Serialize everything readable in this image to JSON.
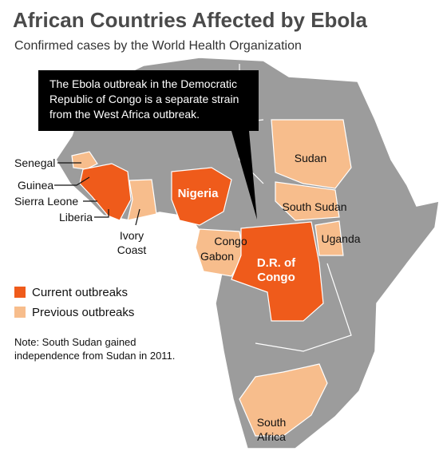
{
  "header": {
    "title": "African Countries Affected by Ebola",
    "subtitle": "Confirmed cases by the World Health Organization"
  },
  "callout": [
    "The Ebola outbreak in the Democratic",
    "Republic of Congo is a separate strain",
    "from the West Africa outbreak."
  ],
  "labels": {
    "senegal": "Senegal",
    "guinea": "Guinea",
    "sierra_leone": "Sierra Leone",
    "liberia": "Liberia",
    "ivory_coast": [
      "Ivory",
      "Coast"
    ],
    "nigeria": "Nigeria",
    "sudan": "Sudan",
    "south_sudan": "South Sudan",
    "uganda": "Uganda",
    "congo": "Congo",
    "gabon": "Gabon",
    "drc": [
      "D.R. of",
      "Congo"
    ],
    "south_africa": [
      "South",
      "Africa"
    ]
  },
  "legend": [
    {
      "label": "Current outbreaks",
      "color": "#ef5b1b"
    },
    {
      "label": "Previous outbreaks",
      "color": "#f7bd8c"
    }
  ],
  "note": [
    "Note: South Sudan gained",
    "independence from Sudan in 2011."
  ]
}
